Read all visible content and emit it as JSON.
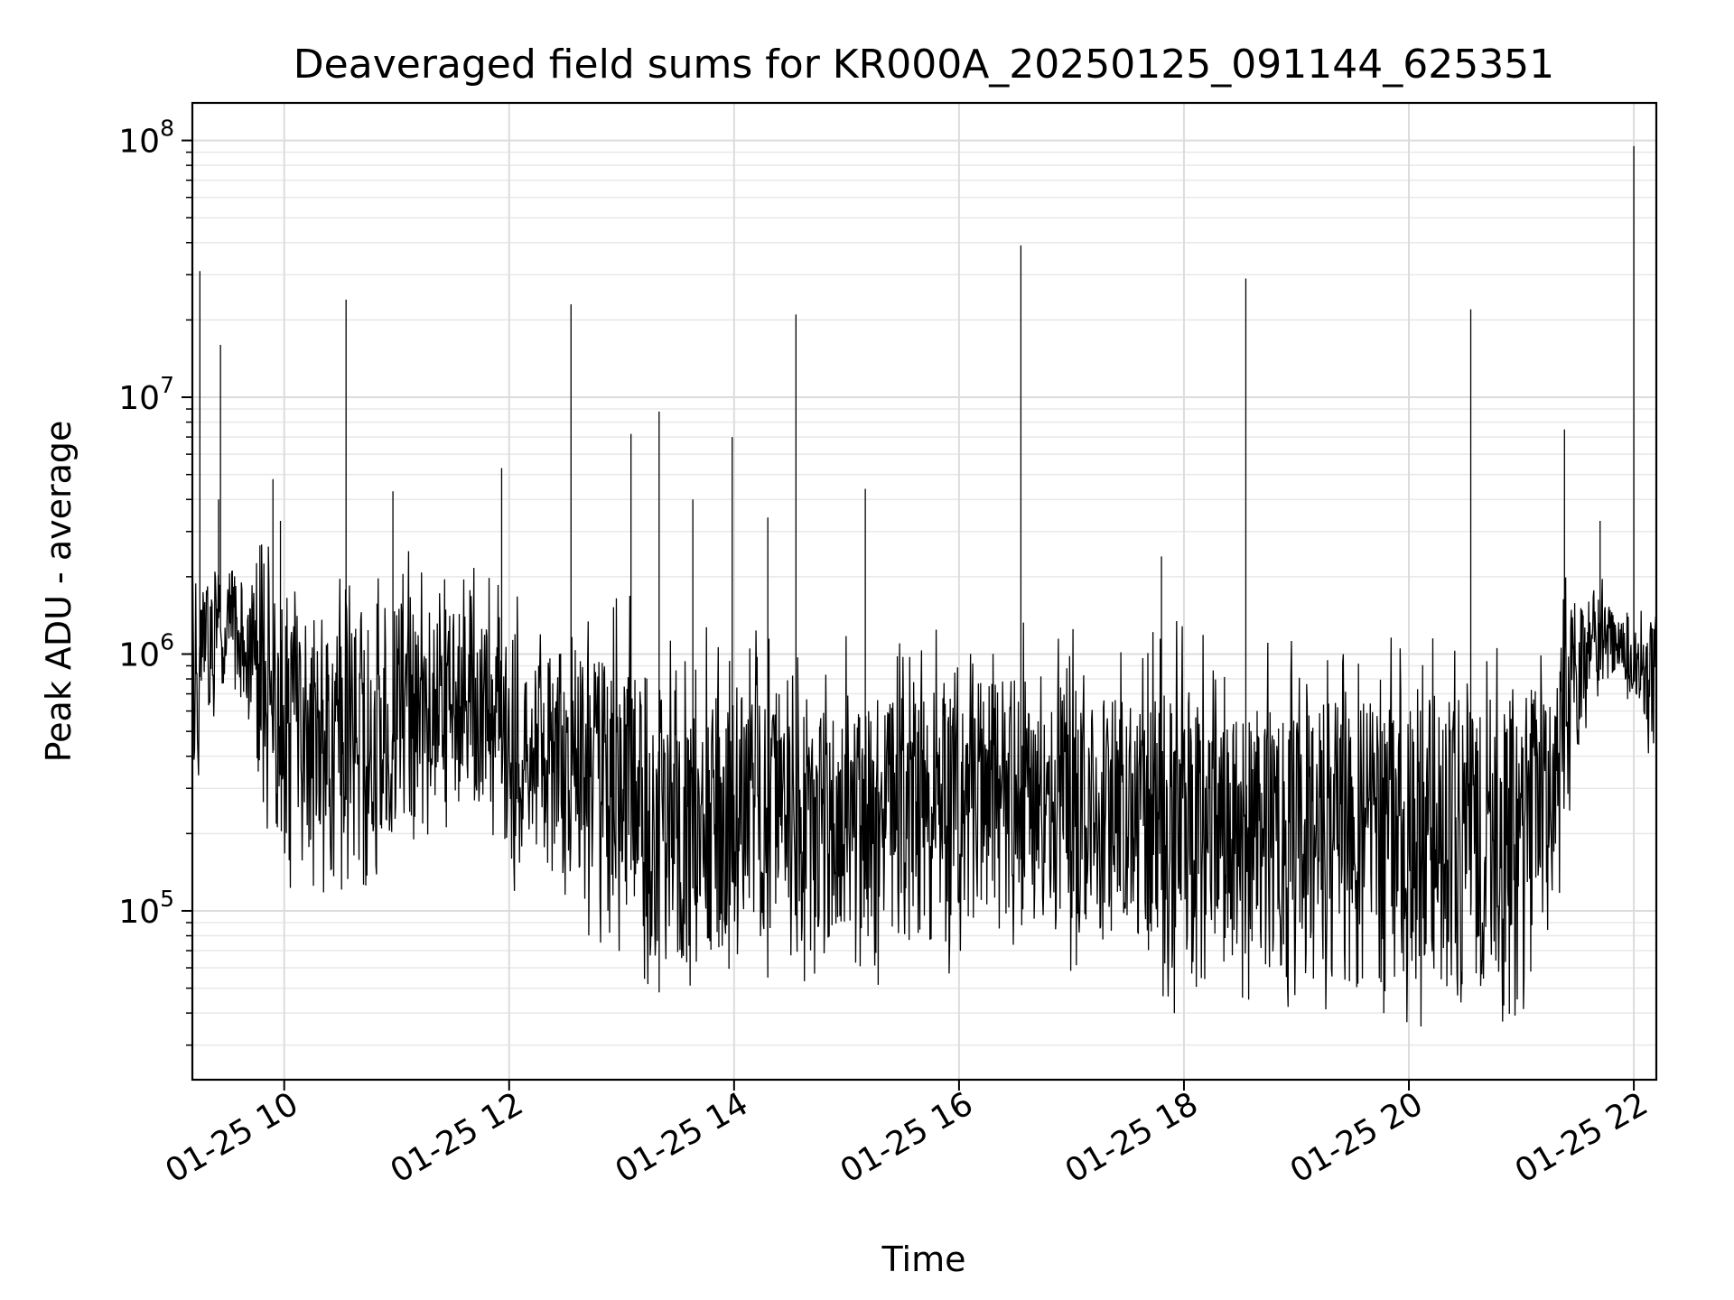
{
  "chart_data": {
    "type": "line",
    "title": "Deaveraged field sums for KR000A_20250125_091144_625351",
    "xlabel": "Time",
    "ylabel": "Peak ADU - average",
    "x_scale": "time",
    "y_scale": "log",
    "xlim": [
      "2025-01-25 09:11",
      "2025-01-25 22:12"
    ],
    "ylim": [
      22000,
      140000000
    ],
    "grid": true,
    "legend": "none",
    "line_color": "#000000",
    "x_ticks": [
      {
        "time": "2025-01-25 10:00",
        "label": "01-25 10"
      },
      {
        "time": "2025-01-25 12:00",
        "label": "01-25 12"
      },
      {
        "time": "2025-01-25 14:00",
        "label": "01-25 14"
      },
      {
        "time": "2025-01-25 16:00",
        "label": "01-25 16"
      },
      {
        "time": "2025-01-25 18:00",
        "label": "01-25 18"
      },
      {
        "time": "2025-01-25 20:00",
        "label": "01-25 20"
      },
      {
        "time": "2025-01-25 22:00",
        "label": "01-25 22"
      }
    ],
    "y_ticks": [
      {
        "value": 100000,
        "base": "10",
        "exp": "5"
      },
      {
        "value": 1000000,
        "base": "10",
        "exp": "6"
      },
      {
        "value": 10000000,
        "base": "10",
        "exp": "7"
      },
      {
        "value": 100000000,
        "base": "10",
        "exp": "8"
      }
    ],
    "baseline_envelope": [
      {
        "time": "2025-01-25 09:11",
        "low": 330000,
        "high": 2000000
      },
      {
        "time": "2025-01-25 09:30",
        "low": 900000,
        "high": 2200000
      },
      {
        "time": "2025-01-25 10:00",
        "low": 150000,
        "high": 1500000
      },
      {
        "time": "2025-01-25 10:30",
        "low": 130000,
        "high": 1300000
      },
      {
        "time": "2025-01-25 11:00",
        "low": 200000,
        "high": 1600000
      },
      {
        "time": "2025-01-25 11:30",
        "low": 220000,
        "high": 1500000
      },
      {
        "time": "2025-01-25 12:00",
        "low": 150000,
        "high": 1100000
      },
      {
        "time": "2025-01-25 12:30",
        "low": 130000,
        "high": 1000000
      },
      {
        "time": "2025-01-25 13:00",
        "low": 75000,
        "high": 950000
      },
      {
        "time": "2025-01-25 13:30",
        "low": 60000,
        "high": 850000
      },
      {
        "time": "2025-01-25 14:00",
        "low": 65000,
        "high": 750000
      },
      {
        "time": "2025-01-25 14:30",
        "low": 70000,
        "high": 700000
      },
      {
        "time": "2025-01-25 15:00",
        "low": 55000,
        "high": 650000
      },
      {
        "time": "2025-01-25 15:30",
        "low": 75000,
        "high": 700000
      },
      {
        "time": "2025-01-25 16:00",
        "low": 70000,
        "high": 800000
      },
      {
        "time": "2025-01-25 16:30",
        "low": 80000,
        "high": 800000
      },
      {
        "time": "2025-01-25 17:00",
        "low": 75000,
        "high": 750000
      },
      {
        "time": "2025-01-25 17:30",
        "low": 80000,
        "high": 750000
      },
      {
        "time": "2025-01-25 18:00",
        "low": 50000,
        "high": 700000
      },
      {
        "time": "2025-01-25 18:30",
        "low": 60000,
        "high": 600000
      },
      {
        "time": "2025-01-25 19:00",
        "low": 55000,
        "high": 650000
      },
      {
        "time": "2025-01-25 19:30",
        "low": 50000,
        "high": 650000
      },
      {
        "time": "2025-01-25 20:00",
        "low": 48000,
        "high": 700000
      },
      {
        "time": "2025-01-25 20:30",
        "low": 48000,
        "high": 700000
      },
      {
        "time": "2025-01-25 21:00",
        "low": 50000,
        "high": 650000
      },
      {
        "time": "2025-01-25 21:15",
        "low": 70000,
        "high": 900000
      },
      {
        "time": "2025-01-25 21:30",
        "low": 500000,
        "high": 1800000
      },
      {
        "time": "2025-01-25 21:45",
        "low": 800000,
        "high": 1600000
      },
      {
        "time": "2025-01-25 22:00",
        "low": 650000,
        "high": 1200000
      },
      {
        "time": "2025-01-25 22:12",
        "low": 350000,
        "high": 1400000
      }
    ],
    "spikes": [
      {
        "time": "2025-01-25 09:15",
        "value": 31000000
      },
      {
        "time": "2025-01-25 09:26",
        "value": 16000000
      },
      {
        "time": "2025-01-25 09:25",
        "value": 4000000
      },
      {
        "time": "2025-01-25 09:54",
        "value": 4800000
      },
      {
        "time": "2025-01-25 09:58",
        "value": 3300000
      },
      {
        "time": "2025-01-25 10:33",
        "value": 24000000
      },
      {
        "time": "2025-01-25 10:58",
        "value": 4300000
      },
      {
        "time": "2025-01-25 11:56",
        "value": 5300000
      },
      {
        "time": "2025-01-25 12:33",
        "value": 23000000
      },
      {
        "time": "2025-01-25 13:05",
        "value": 7200000
      },
      {
        "time": "2025-01-25 13:20",
        "value": 8800000
      },
      {
        "time": "2025-01-25 13:38",
        "value": 4000000
      },
      {
        "time": "2025-01-25 13:59",
        "value": 7000000
      },
      {
        "time": "2025-01-25 14:18",
        "value": 3400000
      },
      {
        "time": "2025-01-25 14:33",
        "value": 21000000
      },
      {
        "time": "2025-01-25 15:10",
        "value": 4400000
      },
      {
        "time": "2025-01-25 16:33",
        "value": 39000000
      },
      {
        "time": "2025-01-25 17:48",
        "value": 2400000
      },
      {
        "time": "2025-01-25 18:33",
        "value": 29000000
      },
      {
        "time": "2025-01-25 20:33",
        "value": 22000000
      },
      {
        "time": "2025-01-25 21:23",
        "value": 7500000
      },
      {
        "time": "2025-01-25 21:42",
        "value": 3300000
      },
      {
        "time": "2025-01-25 22:00",
        "value": 95000000
      }
    ]
  }
}
